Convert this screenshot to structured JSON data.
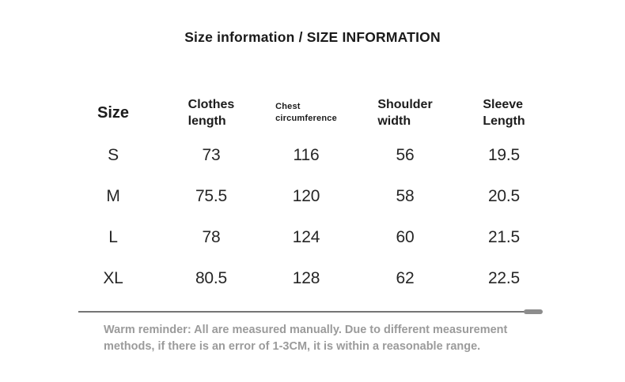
{
  "title": "Size information / SIZE INFORMATION",
  "table": {
    "headers": [
      "Size",
      "Clothes\nlength",
      "Chest\ncircumference",
      "Shoulder\nwidth",
      "Sleeve\nLength"
    ],
    "rows": [
      [
        "S",
        "73",
        "116",
        "56",
        "19.5"
      ],
      [
        "M",
        "75.5",
        "120",
        "58",
        "20.5"
      ],
      [
        "L",
        "78",
        "124",
        "60",
        "21.5"
      ],
      [
        "XL",
        "80.5",
        "128",
        "62",
        "22.5"
      ]
    ]
  },
  "footer": {
    "text": "Warm reminder: All are measured manually. Due to different measurement\nmethods, if there is an error of 1-3CM, it is within a reasonable range."
  },
  "colors": {
    "background": "#ffffff",
    "text_primary": "#1c1c1c",
    "text_data": "#262626",
    "text_reminder": "#9b9b9b",
    "divider": "#757575"
  }
}
